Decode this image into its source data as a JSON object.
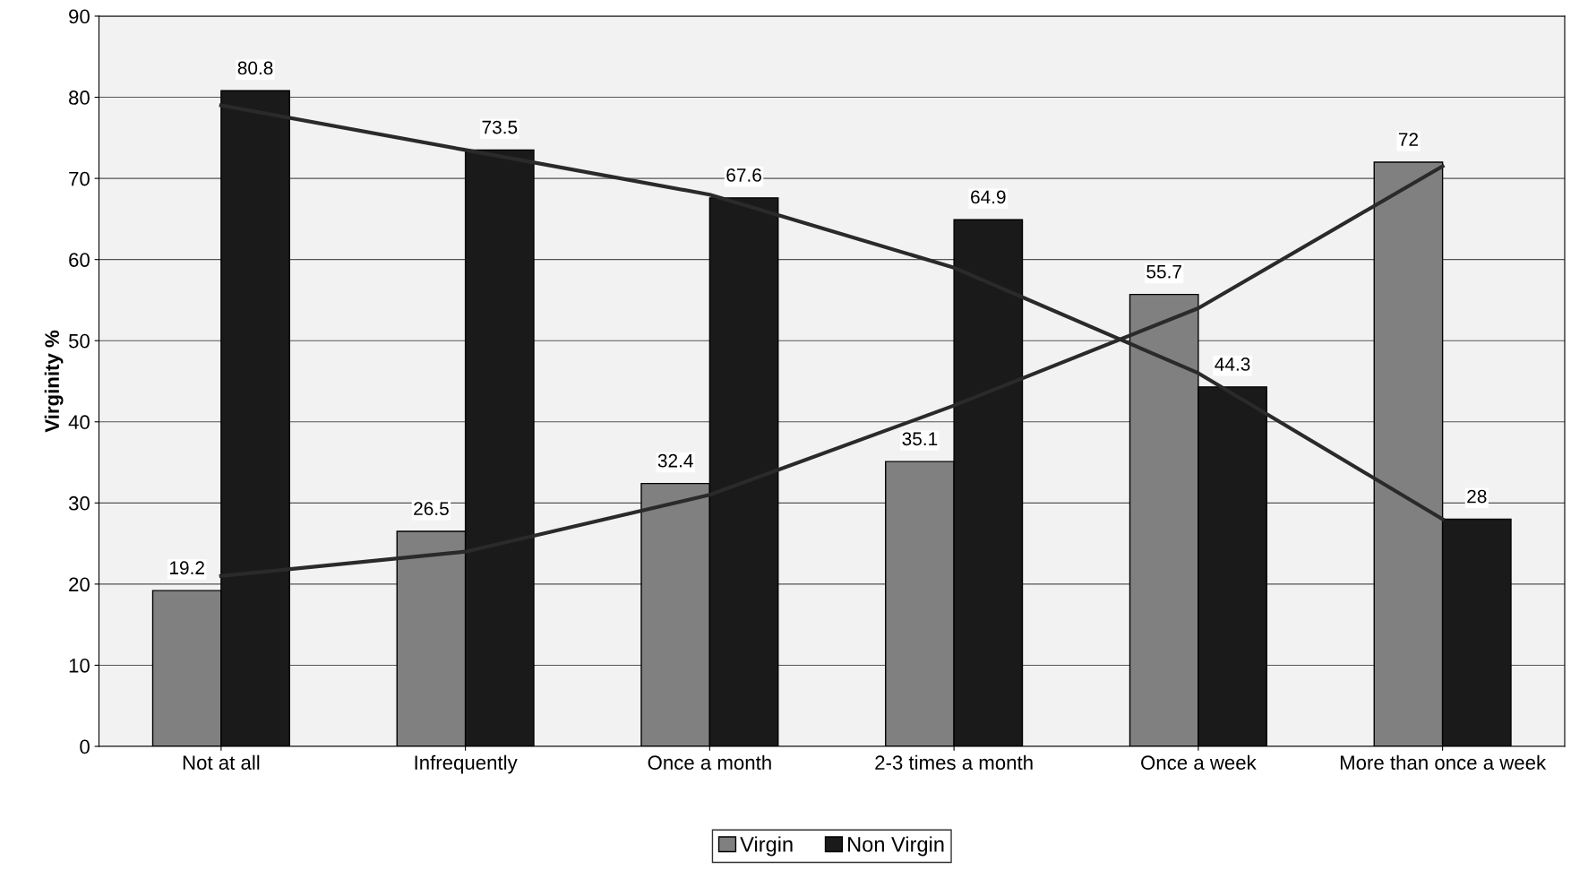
{
  "chart_data": {
    "type": "bar",
    "ylabel": "Virginity %",
    "categories": [
      "Not at all",
      "Infrequently",
      "Once a month",
      "2-3 times a month",
      "Once a week",
      "More than once a week"
    ],
    "series": [
      {
        "name": "Virgin",
        "color": "#808080",
        "values": [
          19.2,
          26.5,
          32.4,
          35.1,
          55.7,
          72
        ],
        "value_labels": [
          "19.2",
          "26.5",
          "32.4",
          "35.1",
          "55.7",
          "72"
        ]
      },
      {
        "name": "Non Virgin",
        "color": "#1a1a1a",
        "values": [
          80.8,
          73.5,
          67.6,
          64.9,
          44.3,
          28
        ],
        "value_labels": [
          "80.8",
          "73.5",
          "67.6",
          "64.9",
          "44.3",
          "28"
        ]
      },
      {
        "type": "line",
        "color": "#2a2a2a",
        "values": [
          21,
          24,
          31,
          42,
          54,
          71.5
        ]
      },
      {
        "type": "line",
        "color": "#2a2a2a",
        "values": [
          79,
          73.5,
          68,
          59,
          46,
          28
        ]
      }
    ],
    "ylim": [
      0,
      90
    ],
    "yticks": [
      0,
      10,
      20,
      30,
      40,
      50,
      60,
      70,
      80,
      90
    ],
    "grid": "y",
    "legend": "bottom"
  }
}
